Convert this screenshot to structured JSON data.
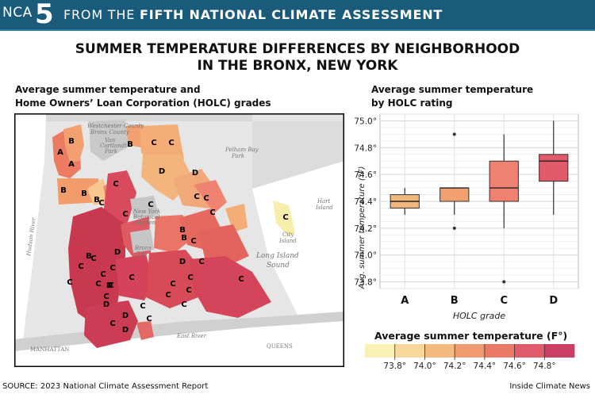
{
  "header": {
    "badge_prefix": "NCA",
    "badge_number": "5",
    "text_plain": "FROM THE ",
    "text_bold": "FIFTH NATIONAL CLIMATE ASSESSMENT",
    "bg_color": "#1a5a7a"
  },
  "title": {
    "line1": "SUMMER TEMPERATURE DIFFERENCES BY NEIGHBORHOOD",
    "line2": "IN THE BRONX, NEW YORK"
  },
  "map": {
    "subtitle_line1": "Average summer temperature and",
    "subtitle_line2": "Home Owners’ Loan Corporation (HOLC) grades",
    "geo_labels": {
      "hudson": "Hudson River",
      "long_island_sound_1": "Long Island",
      "long_island_sound_2": "Sound",
      "east_river": "East River",
      "manhattan": "MANHATTAN",
      "queens": "QUEENS",
      "westchester": "Westchester County",
      "bronx_county": "Bronx County",
      "city_island_1": "City",
      "city_island_2": "Island",
      "hart_island_1": "Hart",
      "hart_island_2": "Island",
      "bronx_zoo_1": "Bronx",
      "bronx_zoo_2": "Zoo",
      "botanical_1": "New York",
      "botanical_2": "Botanical",
      "botanical_3": "Garden",
      "pelham_bay_1": "Pelham Bay",
      "pelham_bay_2": "Park",
      "van_cortlandt_1": "Van",
      "van_cortlandt_2": "Cortlandt",
      "van_cortlandt_3": "Park"
    },
    "grade_labels": [
      "A",
      "A",
      "B",
      "B",
      "B",
      "C",
      "B",
      "C",
      "C",
      "B",
      "D",
      "C",
      "C",
      "C",
      "C",
      "C",
      "C",
      "C",
      "C",
      "C",
      "B",
      "C",
      "C",
      "B",
      "C",
      "D",
      "B",
      "C",
      "C",
      "D",
      "C",
      "C",
      "C",
      "D",
      "C",
      "C",
      "C",
      "C",
      "C",
      "C",
      "D",
      "C",
      "D",
      "D",
      "C",
      "C",
      "D",
      "C"
    ]
  },
  "chart_data": {
    "type": "box",
    "title_line1": "Average summer temperature",
    "title_line2": "by HOLC rating",
    "xlabel": "HOLC grade",
    "ylabel": "Avg. summer temperature (°F)",
    "ylim": [
      73.75,
      75.05
    ],
    "yticks": [
      73.8,
      74.0,
      74.2,
      74.4,
      74.6,
      74.8,
      75.0
    ],
    "ytick_labels": [
      "73.8°",
      "74.0°",
      "74.2°",
      "74.4°",
      "74.6°",
      "74.8°",
      "75.0°"
    ],
    "grid": true,
    "categories": [
      "A",
      "B",
      "C",
      "D"
    ],
    "boxes": [
      {
        "grade": "A",
        "q1": 74.35,
        "median": 74.4,
        "q3": 74.45,
        "whisker_low": 74.3,
        "whisker_high": 74.5,
        "outliers": [],
        "color": "#f2b77a"
      },
      {
        "grade": "B",
        "q1": 74.4,
        "median": 74.5,
        "q3": 74.5,
        "whisker_low": 74.3,
        "whisker_high": 74.5,
        "outliers": [
          74.2,
          74.9
        ],
        "color": "#f2a070"
      },
      {
        "grade": "C",
        "q1": 74.4,
        "median": 74.5,
        "q3": 74.7,
        "whisker_low": 74.2,
        "whisker_high": 74.9,
        "outliers": [
          73.8
        ],
        "color": "#ef8170"
      },
      {
        "grade": "D",
        "q1": 74.55,
        "median": 74.7,
        "q3": 74.75,
        "whisker_low": 74.3,
        "whisker_high": 75.0,
        "outliers": [],
        "color": "#e05a6a"
      }
    ],
    "legend": {
      "title": "Average summer temperature (F°)",
      "labels": [
        "73.8°",
        "74.0°",
        "74.2°",
        "74.4°",
        "74.6°",
        "74.8°"
      ],
      "colors": [
        "#faf0b6",
        "#f8d79c",
        "#f4ba80",
        "#f09a70",
        "#ea7968",
        "#e05c6c",
        "#cc3d66"
      ]
    }
  },
  "footer": {
    "source": "SOURCE: 2023 National Climate Assessment Report",
    "credit": "Inside Climate News"
  }
}
